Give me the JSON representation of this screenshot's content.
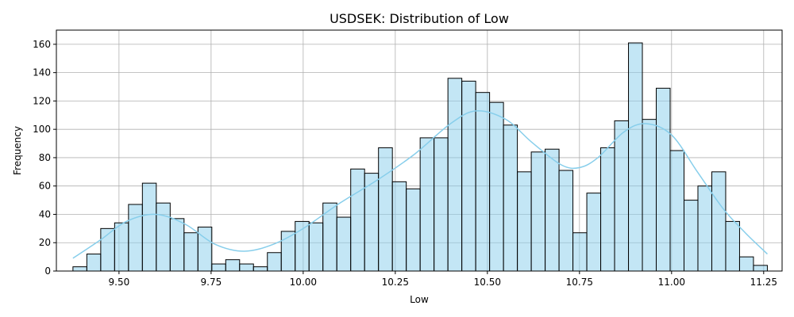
{
  "chart_data": {
    "type": "bar",
    "subtype": "histogram",
    "title": "USDSEK: Distribution of Low",
    "xlabel": "Low",
    "ylabel": "Frequency",
    "xlim": [
      9.33,
      11.3
    ],
    "ylim": [
      0,
      170
    ],
    "grid": true,
    "legend": "none",
    "bar_color": "#87ceeb",
    "edge_color": "#000000",
    "kde_color": "#87ceeb",
    "x_ticks": [
      "9.50",
      "9.75",
      "10.00",
      "10.25",
      "10.50",
      "10.75",
      "11.00",
      "11.25"
    ],
    "y_ticks": [
      "0",
      "20",
      "40",
      "60",
      "80",
      "100",
      "120",
      "140",
      "160"
    ],
    "bin_start": 9.375,
    "bin_width": 0.0377,
    "counts": [
      3,
      12,
      30,
      34,
      47,
      62,
      48,
      37,
      27,
      31,
      5,
      8,
      5,
      3,
      13,
      28,
      35,
      34,
      48,
      38,
      72,
      69,
      87,
      63,
      58,
      94,
      94,
      136,
      134,
      126,
      119,
      103,
      70,
      84,
      86,
      71,
      27,
      55,
      87,
      106,
      161,
      107,
      129,
      85,
      50,
      60,
      70,
      35,
      10,
      4
    ],
    "kde": {
      "x": [
        9.375,
        9.45,
        9.52,
        9.6,
        9.68,
        9.76,
        9.84,
        9.92,
        10.0,
        10.1,
        10.2,
        10.3,
        10.4,
        10.47,
        10.55,
        10.62,
        10.7,
        10.75,
        10.8,
        10.87,
        10.93,
        11.0,
        11.07,
        11.14,
        11.2,
        11.26
      ],
      "y": [
        9,
        22,
        35,
        40,
        33,
        19,
        14,
        19,
        30,
        48,
        64,
        82,
        104,
        113,
        107,
        91,
        75,
        73,
        80,
        98,
        104,
        96,
        70,
        44,
        27,
        12
      ]
    }
  }
}
